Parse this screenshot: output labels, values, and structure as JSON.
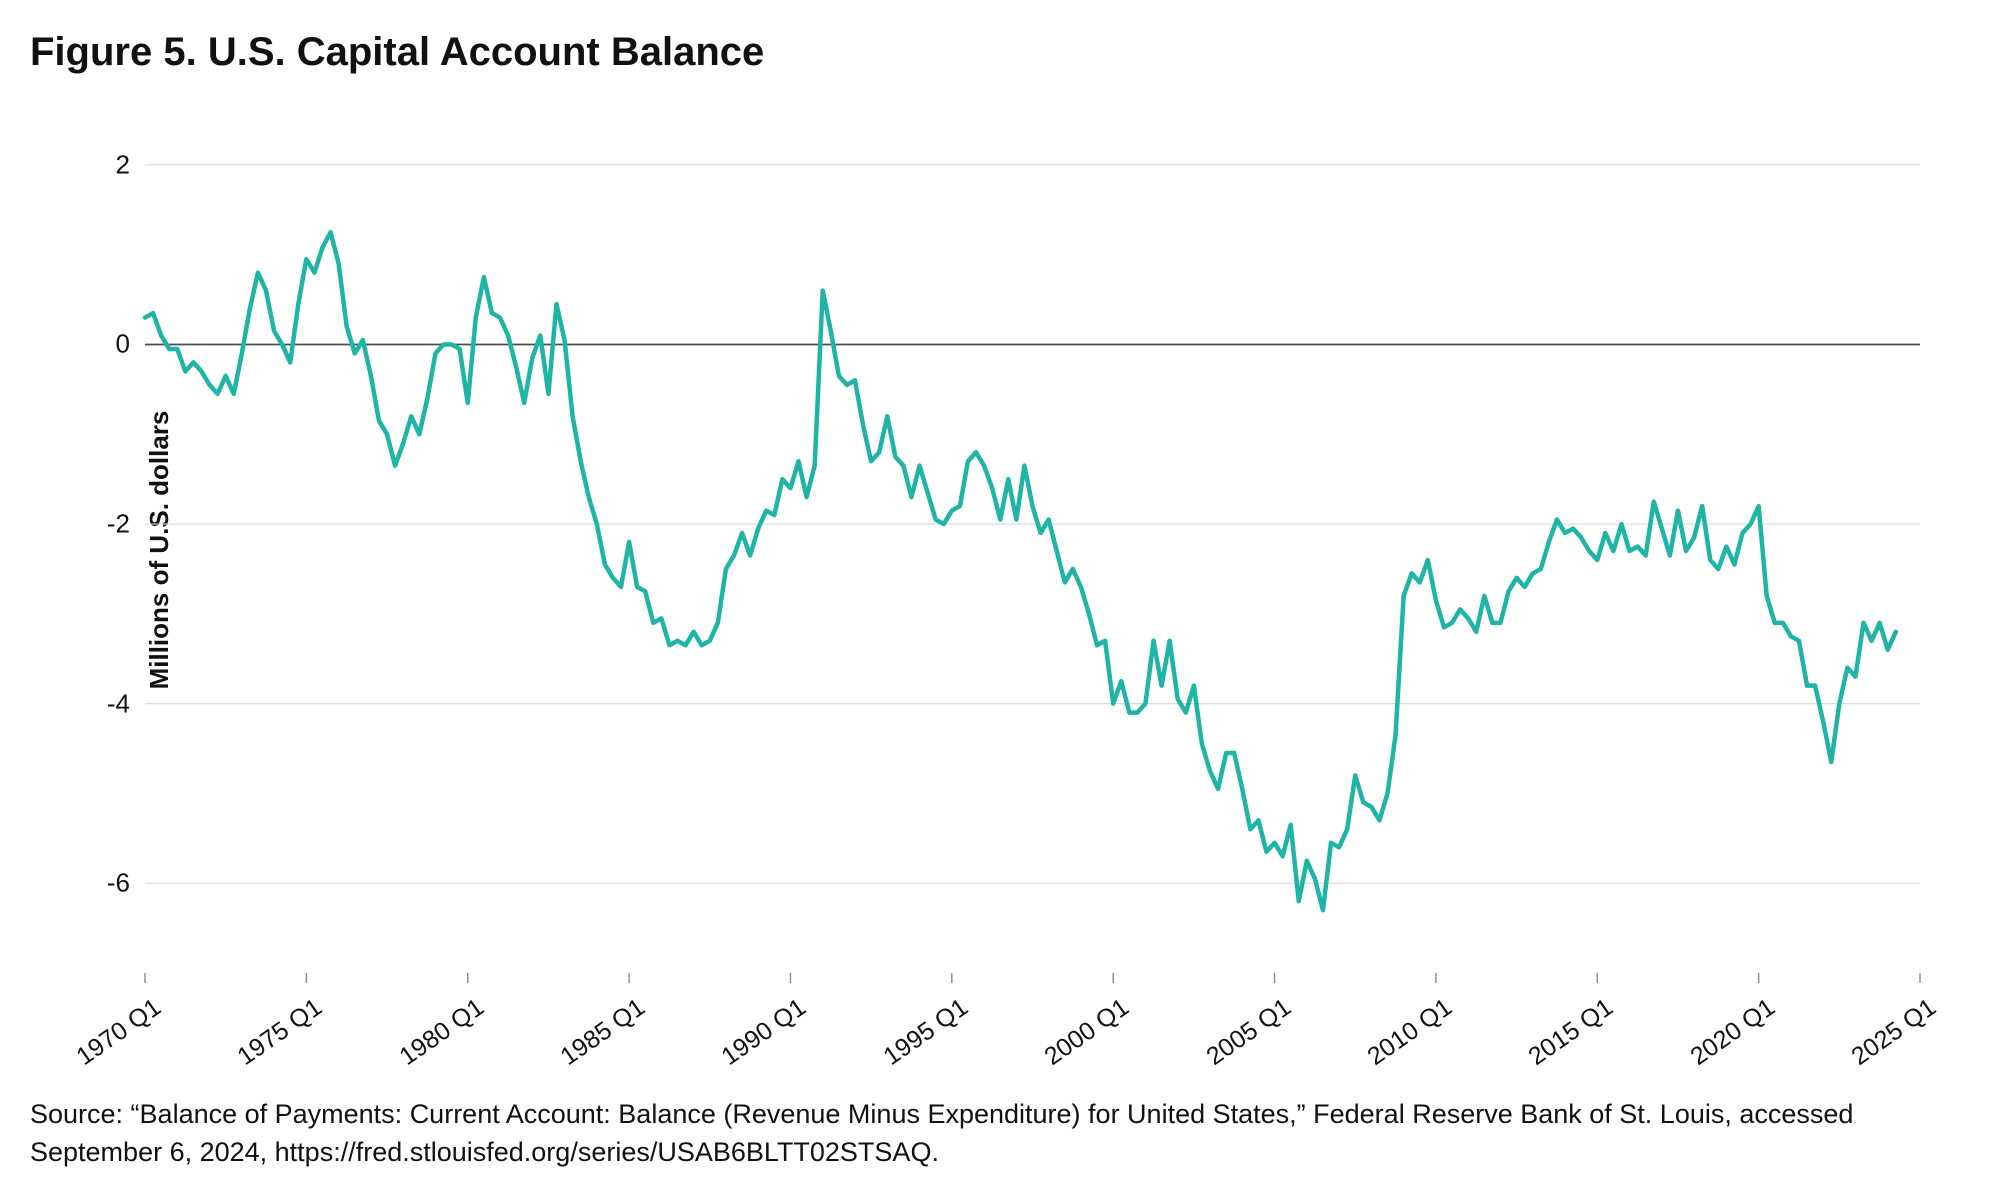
{
  "figure": {
    "title": "Figure 5. U.S. Capital Account Balance",
    "source": "Source: “Balance of Payments: Current Account: Balance (Revenue Minus Expenditure) for United States,” Federal Reserve Bank of St. Louis, accessed September 6, 2024, https://fred.stlouisfed.org/series/USAB6BLTT02STSAQ.",
    "chart": {
      "type": "line",
      "ylabel": "Millions of U.S. dollars",
      "ylim": [
        -7,
        2.5
      ],
      "yticks": [
        -6,
        -4,
        -2,
        0,
        2
      ],
      "ytick_labels": [
        "-6",
        "-4",
        "-2",
        "0",
        "2"
      ],
      "xlim": [
        1970.0,
        2025.0
      ],
      "xticks": [
        1970,
        1975,
        1980,
        1985,
        1990,
        1995,
        2000,
        2005,
        2010,
        2015,
        2020,
        2025
      ],
      "xtick_labels": [
        "1970 Q1",
        "1975 Q1",
        "1980 Q1",
        "1985 Q1",
        "1990 Q1",
        "1995 Q1",
        "2000 Q1",
        "2005 Q1",
        "2010 Q1",
        "2015 Q1",
        "2020 Q1",
        "2025 Q1"
      ],
      "line_color": "#1fb5a6",
      "line_width": 4.5,
      "zero_line_color": "#4d4d4d",
      "zero_line_width": 1.8,
      "grid_color": "#d9d9d9",
      "grid_width": 1.2,
      "background_color": "#ffffff",
      "axis_label_fontsize": 26,
      "tick_fontsize": 26,
      "title_fontsize": 40,
      "title_fontweight": 700,
      "source_fontsize": 27,
      "x_values": [
        1970.0,
        1970.25,
        1970.5,
        1970.75,
        1971.0,
        1971.25,
        1971.5,
        1971.75,
        1972.0,
        1972.25,
        1972.5,
        1972.75,
        1973.0,
        1973.25,
        1973.5,
        1973.75,
        1974.0,
        1974.25,
        1974.5,
        1974.75,
        1975.0,
        1975.25,
        1975.5,
        1975.75,
        1976.0,
        1976.25,
        1976.5,
        1976.75,
        1977.0,
        1977.25,
        1977.5,
        1977.75,
        1978.0,
        1978.25,
        1978.5,
        1978.75,
        1979.0,
        1979.25,
        1979.5,
        1979.75,
        1980.0,
        1980.25,
        1980.5,
        1980.75,
        1981.0,
        1981.25,
        1981.5,
        1981.75,
        1982.0,
        1982.25,
        1982.5,
        1982.75,
        1983.0,
        1983.25,
        1983.5,
        1983.75,
        1984.0,
        1984.25,
        1984.5,
        1984.75,
        1985.0,
        1985.25,
        1985.5,
        1985.75,
        1986.0,
        1986.25,
        1986.5,
        1986.75,
        1987.0,
        1987.25,
        1987.5,
        1987.75,
        1988.0,
        1988.25,
        1988.5,
        1988.75,
        1989.0,
        1989.25,
        1989.5,
        1989.75,
        1990.0,
        1990.25,
        1990.5,
        1990.75,
        1991.0,
        1991.25,
        1991.5,
        1991.75,
        1992.0,
        1992.25,
        1992.5,
        1992.75,
        1993.0,
        1993.25,
        1993.5,
        1993.75,
        1994.0,
        1994.25,
        1994.5,
        1994.75,
        1995.0,
        1995.25,
        1995.5,
        1995.75,
        1996.0,
        1996.25,
        1996.5,
        1996.75,
        1997.0,
        1997.25,
        1997.5,
        1997.75,
        1998.0,
        1998.25,
        1998.5,
        1998.75,
        1999.0,
        1999.25,
        1999.5,
        1999.75,
        2000.0,
        2000.25,
        2000.5,
        2000.75,
        2001.0,
        2001.25,
        2001.5,
        2001.75,
        2002.0,
        2002.25,
        2002.5,
        2002.75,
        2003.0,
        2003.25,
        2003.5,
        2003.75,
        2004.0,
        2004.25,
        2004.5,
        2004.75,
        2005.0,
        2005.25,
        2005.5,
        2005.75,
        2006.0,
        2006.25,
        2006.5,
        2006.75,
        2007.0,
        2007.25,
        2007.5,
        2007.75,
        2008.0,
        2008.25,
        2008.5,
        2008.75,
        2009.0,
        2009.25,
        2009.5,
        2009.75,
        2010.0,
        2010.25,
        2010.5,
        2010.75,
        2011.0,
        2011.25,
        2011.5,
        2011.75,
        2012.0,
        2012.25,
        2012.5,
        2012.75,
        2013.0,
        2013.25,
        2013.5,
        2013.75,
        2014.0,
        2014.25,
        2014.5,
        2014.75,
        2015.0,
        2015.25,
        2015.5,
        2015.75,
        2016.0,
        2016.25,
        2016.5,
        2016.75,
        2017.0,
        2017.25,
        2017.5,
        2017.75,
        2018.0,
        2018.25,
        2018.5,
        2018.75,
        2019.0,
        2019.25,
        2019.5,
        2019.75,
        2020.0,
        2020.25,
        2020.5,
        2020.75,
        2021.0,
        2021.25,
        2021.5,
        2021.75,
        2022.0,
        2022.25,
        2022.5,
        2022.75,
        2023.0,
        2023.25,
        2023.5,
        2023.75,
        2024.0,
        2024.25
      ],
      "y_values": [
        0.3,
        0.35,
        0.1,
        -0.05,
        -0.05,
        -0.3,
        -0.2,
        -0.3,
        -0.45,
        -0.55,
        -0.35,
        -0.55,
        -0.1,
        0.4,
        0.8,
        0.6,
        0.15,
        0.0,
        -0.2,
        0.45,
        0.95,
        0.8,
        1.08,
        1.25,
        0.9,
        0.2,
        -0.1,
        0.05,
        -0.35,
        -0.85,
        -1.0,
        -1.35,
        -1.1,
        -0.8,
        -1.0,
        -0.6,
        -0.1,
        0.0,
        0.0,
        -0.05,
        -0.65,
        0.3,
        0.75,
        0.35,
        0.3,
        0.1,
        -0.25,
        -0.65,
        -0.15,
        0.1,
        -0.55,
        0.45,
        0.05,
        -0.8,
        -1.3,
        -1.7,
        -2.0,
        -2.45,
        -2.6,
        -2.7,
        -2.2,
        -2.7,
        -2.75,
        -3.1,
        -3.05,
        -3.35,
        -3.3,
        -3.35,
        -3.2,
        -3.35,
        -3.3,
        -3.1,
        -2.5,
        -2.35,
        -2.1,
        -2.35,
        -2.05,
        -1.85,
        -1.9,
        -1.5,
        -1.6,
        -1.3,
        -1.7,
        -1.35,
        0.6,
        0.15,
        -0.35,
        -0.45,
        -0.4,
        -0.9,
        -1.3,
        -1.2,
        -0.8,
        -1.25,
        -1.35,
        -1.7,
        -1.35,
        -1.65,
        -1.95,
        -2.0,
        -1.85,
        -1.8,
        -1.3,
        -1.2,
        -1.35,
        -1.6,
        -1.95,
        -1.5,
        -1.95,
        -1.35,
        -1.8,
        -2.1,
        -1.95,
        -2.3,
        -2.65,
        -2.5,
        -2.7,
        -3.0,
        -3.35,
        -3.3,
        -4.0,
        -3.75,
        -4.1,
        -4.1,
        -4.0,
        -3.3,
        -3.8,
        -3.3,
        -3.95,
        -4.1,
        -3.8,
        -4.45,
        -4.75,
        -4.95,
        -4.55,
        -4.55,
        -4.95,
        -5.4,
        -5.3,
        -5.65,
        -5.55,
        -5.7,
        -5.35,
        -6.2,
        -5.75,
        -5.95,
        -6.3,
        -5.55,
        -5.6,
        -5.4,
        -4.8,
        -5.1,
        -5.15,
        -5.3,
        -5.0,
        -4.35,
        -2.8,
        -2.55,
        -2.65,
        -2.4,
        -2.85,
        -3.15,
        -3.1,
        -2.95,
        -3.05,
        -3.2,
        -2.8,
        -3.1,
        -3.1,
        -2.75,
        -2.6,
        -2.7,
        -2.55,
        -2.5,
        -2.2,
        -1.95,
        -2.1,
        -2.05,
        -2.15,
        -2.3,
        -2.4,
        -2.1,
        -2.3,
        -2.0,
        -2.3,
        -2.25,
        -2.35,
        -1.75,
        -2.05,
        -2.35,
        -1.85,
        -2.3,
        -2.15,
        -1.8,
        -2.4,
        -2.5,
        -2.25,
        -2.45,
        -2.1,
        -2.0,
        -1.8,
        -2.8,
        -3.1,
        -3.1,
        -3.25,
        -3.3,
        -3.8,
        -3.8,
        -4.2,
        -4.65,
        -4.0,
        -3.6,
        -3.7,
        -3.1,
        -3.3,
        -3.1,
        -3.4,
        -3.2
      ]
    }
  }
}
